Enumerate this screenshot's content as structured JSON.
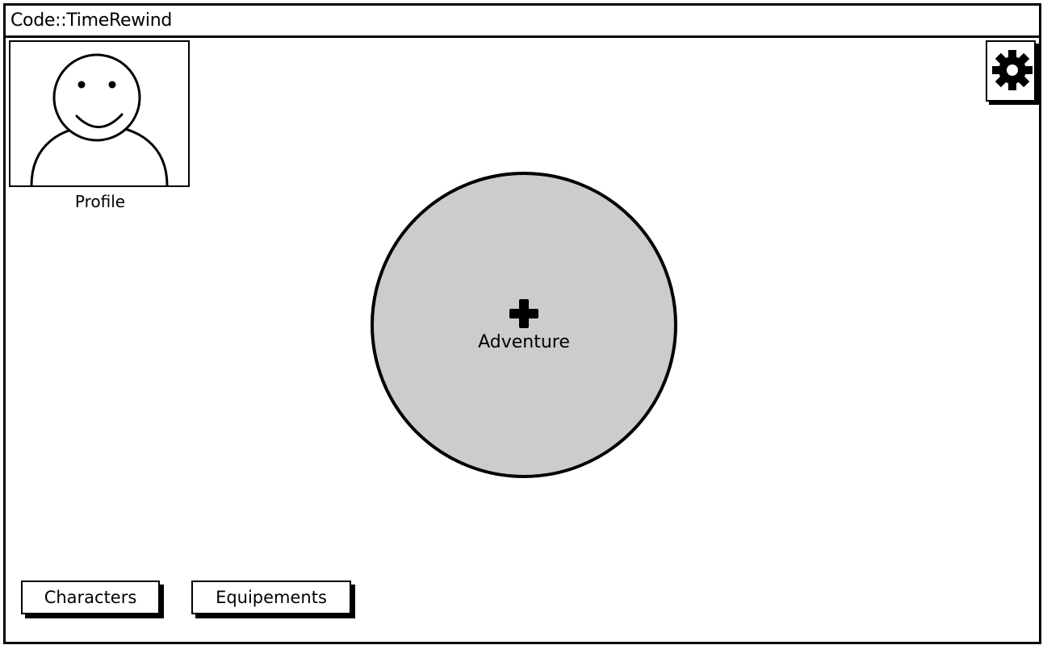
{
  "window": {
    "title": "Code::TimeRewind"
  },
  "profile": {
    "label": "Profile",
    "icon": "user-avatar-icon"
  },
  "settings": {
    "icon": "gear-icon"
  },
  "adventure": {
    "label": "Adventure",
    "icon": "plus-icon",
    "fill_color": "#cccccc"
  },
  "bottom_buttons": {
    "characters_label": "Characters",
    "equipements_label": "Equipements"
  }
}
